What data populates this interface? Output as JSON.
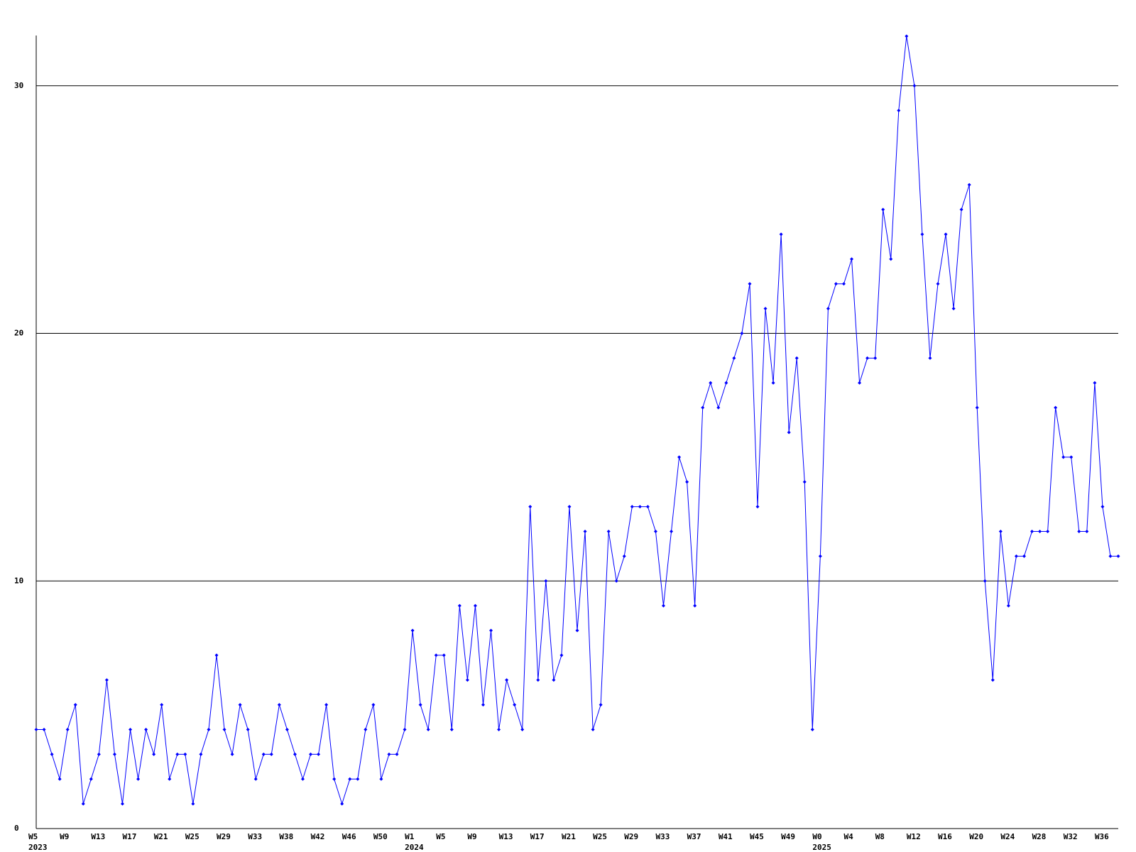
{
  "chart_data": {
    "type": "line",
    "color": "#0000ff",
    "grid": true,
    "ylim": [
      0,
      32
    ],
    "yticks": [
      0,
      10,
      20,
      30
    ],
    "categories": [
      "W5",
      null,
      null,
      null,
      "W9",
      null,
      null,
      null,
      "W13",
      null,
      null,
      null,
      "W17",
      null,
      null,
      null,
      "W21",
      null,
      null,
      null,
      "W25",
      null,
      null,
      null,
      "W29",
      null,
      null,
      null,
      "W33",
      null,
      null,
      null,
      "W38",
      null,
      null,
      null,
      "W42",
      null,
      null,
      null,
      "W46",
      null,
      null,
      null,
      "W50",
      null,
      null,
      null,
      "W1",
      null,
      null,
      null,
      "W5",
      null,
      null,
      null,
      "W9",
      null,
      null,
      null,
      "W13",
      null,
      null,
      null,
      "W17",
      null,
      null,
      null,
      "W21",
      null,
      null,
      null,
      "W25",
      null,
      null,
      null,
      "W29",
      null,
      null,
      null,
      "W33",
      null,
      null,
      null,
      "W37",
      null,
      null,
      null,
      "W41",
      null,
      null,
      null,
      "W45",
      null,
      null,
      null,
      "W49",
      null,
      null,
      null,
      "W0",
      null,
      null,
      null,
      "W4",
      null,
      null,
      null,
      "W8",
      null,
      null,
      null,
      "W12",
      null,
      null,
      null,
      "W16",
      null,
      null,
      null,
      "W20",
      null,
      null,
      null,
      "W24",
      null,
      null,
      null,
      "W28",
      null,
      null,
      null,
      "W32",
      null,
      null,
      null,
      "W36",
      null,
      null
    ],
    "category_years": [
      "2023",
      null,
      null,
      null,
      null,
      null,
      null,
      null,
      null,
      null,
      null,
      null,
      null,
      null,
      null,
      null,
      null,
      null,
      null,
      null,
      null,
      null,
      null,
      null,
      null,
      null,
      null,
      null,
      null,
      null,
      null,
      null,
      null,
      null,
      null,
      null,
      null,
      null,
      null,
      null,
      null,
      null,
      null,
      null,
      null,
      null,
      null,
      null,
      "2024",
      null,
      null,
      null,
      null,
      null,
      null,
      null,
      null,
      null,
      null,
      null,
      null,
      null,
      null,
      null,
      null,
      null,
      null,
      null,
      null,
      null,
      null,
      null,
      null,
      null,
      null,
      null,
      null,
      null,
      null,
      null,
      null,
      null,
      null,
      null,
      null,
      null,
      null,
      null,
      null,
      null,
      null,
      null,
      null,
      null,
      null,
      null,
      null,
      null,
      null,
      null,
      "2025",
      null,
      null,
      null,
      null,
      null,
      null,
      null,
      null,
      null,
      null,
      null,
      null,
      null,
      null,
      null,
      null,
      null,
      null,
      null,
      null,
      null,
      null,
      null,
      null,
      null,
      null,
      null,
      null,
      null,
      null,
      null,
      null,
      null,
      null,
      null,
      null,
      null
    ],
    "values": [
      4,
      4,
      3,
      2,
      4,
      5,
      1,
      2,
      3,
      6,
      3,
      1,
      4,
      2,
      4,
      3,
      5,
      2,
      3,
      3,
      1,
      3,
      4,
      7,
      4,
      3,
      5,
      4,
      2,
      3,
      3,
      5,
      4,
      3,
      2,
      3,
      3,
      5,
      2,
      1,
      2,
      2,
      4,
      5,
      2,
      3,
      3,
      4,
      8,
      5,
      4,
      7,
      7,
      4,
      9,
      6,
      9,
      5,
      8,
      4,
      6,
      5,
      4,
      13,
      6,
      10,
      6,
      7,
      13,
      8,
      12,
      4,
      5,
      12,
      10,
      11,
      13,
      13,
      13,
      12,
      9,
      12,
      15,
      14,
      9,
      17,
      18,
      17,
      18,
      19,
      20,
      22,
      13,
      21,
      18,
      24,
      16,
      19,
      14,
      4,
      11,
      21,
      22,
      22,
      23,
      18,
      19,
      19,
      25,
      23,
      29,
      32,
      30,
      24,
      19,
      22,
      24,
      21,
      25,
      26,
      17,
      10,
      6,
      12,
      9,
      11,
      11,
      12,
      12,
      12,
      17,
      15,
      15,
      12,
      12,
      18,
      13,
      11,
      11
    ]
  }
}
